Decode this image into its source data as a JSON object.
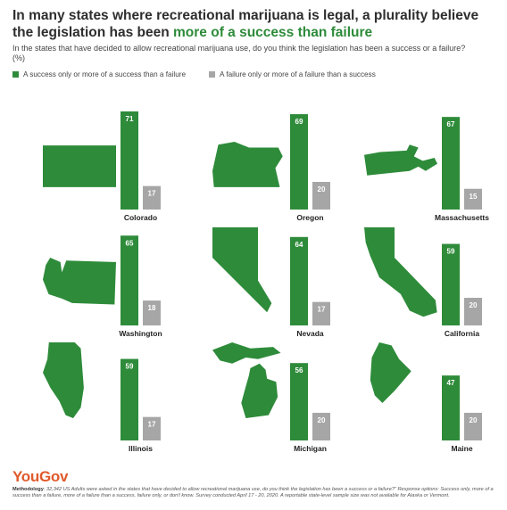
{
  "title_part1": "In many states where recreational marijuana is legal, a plurality believe the legislation has been ",
  "title_accent": "more of a success than failure",
  "subtitle": "In the states that have decided to allow recreational marijuana use, do you think the legislation has been a success or a failure? (%)",
  "colors": {
    "success": "#2e8b3a",
    "failure": "#a6a6a6",
    "accent": "#2e8b3a",
    "logo": "#e05a2b"
  },
  "legend": [
    {
      "label": "A success only or more of a success than a failure",
      "color": "#2e8b3a"
    },
    {
      "label": "A failure only or more of a failure than a success",
      "color": "#a6a6a6"
    }
  ],
  "chart_data": {
    "type": "bar",
    "series_names": [
      "A success only or more of a success than a failure",
      "A failure only or more of a failure than a success"
    ],
    "panels": [
      {
        "state": "Colorado",
        "success": 71,
        "failure": 17,
        "icon": "colorado-shape-icon"
      },
      {
        "state": "Oregon",
        "success": 69,
        "failure": 20,
        "icon": "oregon-shape-icon"
      },
      {
        "state": "Massachusetts",
        "success": 67,
        "failure": 15,
        "icon": "massachusetts-shape-icon"
      },
      {
        "state": "Washington",
        "success": 65,
        "failure": 18,
        "icon": "washington-shape-icon"
      },
      {
        "state": "Nevada",
        "success": 64,
        "failure": 17,
        "icon": "nevada-shape-icon"
      },
      {
        "state": "California",
        "success": 59,
        "failure": 20,
        "icon": "california-shape-icon"
      },
      {
        "state": "Illinois",
        "success": 59,
        "failure": 17,
        "icon": "illinois-shape-icon"
      },
      {
        "state": "Michigan",
        "success": 56,
        "failure": 20,
        "icon": "michigan-shape-icon"
      },
      {
        "state": "Maine",
        "success": 47,
        "failure": 20,
        "icon": "maine-shape-icon"
      }
    ]
  },
  "footer": {
    "logo": "YouGov",
    "method_label": "Methodology",
    "method_text": ": 32,342 US Adults were asked in the states that have decided to allow recreational marijuana use, do you think the legislation has been a success or a failure?\" Response options: Success only, more of a success than a failure, more of a failure than a success, failure only, or don't know. Survey conducted April 17 - 20, 2020. A reportable state-level sample size was not available for Alaska or Vermont."
  }
}
